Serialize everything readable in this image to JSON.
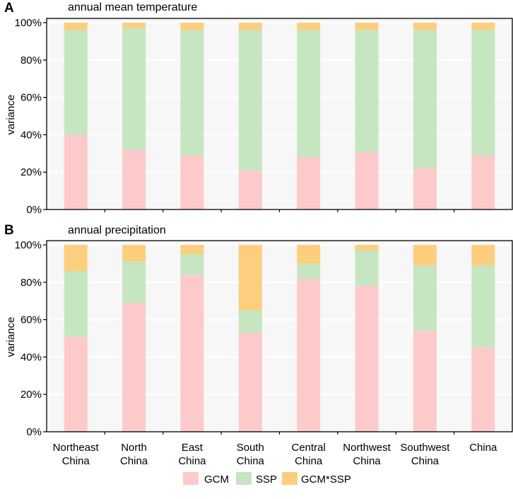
{
  "figure": {
    "panels": [
      {
        "letter": "A",
        "title": "annual mean temperature"
      },
      {
        "letter": "B",
        "title": "annual precipitation"
      }
    ],
    "colors": {
      "GCM": "#fdcacb",
      "SSP": "#c6e6c1",
      "GCM*SSP": "#fcce7e",
      "plot_bg": "#f7f7f7",
      "grid": "#ffffff"
    }
  },
  "chart_data": [
    {
      "type": "bar",
      "stacked": true,
      "title": "annual mean temperature",
      "panel": "A",
      "ylabel": "variance",
      "xlabel": "",
      "ylim": [
        0,
        100
      ],
      "yticks": [
        "0%",
        "20%",
        "40%",
        "60%",
        "80%",
        "100%"
      ],
      "categories": [
        "Northeast China",
        "North China",
        "East China",
        "South China",
        "Central China",
        "Northwest China",
        "Southwest China",
        "China"
      ],
      "series": [
        {
          "name": "GCM",
          "values": [
            40,
            32,
            29,
            21,
            28,
            31,
            22,
            29
          ]
        },
        {
          "name": "SSP",
          "values": [
            56,
            65,
            67,
            75,
            68,
            65,
            74,
            67
          ]
        },
        {
          "name": "GCM*SSP",
          "values": [
            4,
            3,
            4,
            4,
            4,
            4,
            4,
            4
          ]
        }
      ]
    },
    {
      "type": "bar",
      "stacked": true,
      "title": "annual precipitation",
      "panel": "B",
      "ylabel": "variance",
      "xlabel": "",
      "ylim": [
        0,
        100
      ],
      "yticks": [
        "0%",
        "20%",
        "40%",
        "60%",
        "80%",
        "100%"
      ],
      "categories": [
        "Northeast China",
        "North China",
        "East China",
        "South China",
        "Central China",
        "Northwest China",
        "Southwest China",
        "China"
      ],
      "series": [
        {
          "name": "GCM",
          "values": [
            51,
            69,
            84,
            53,
            82,
            78,
            54,
            45
          ]
        },
        {
          "name": "SSP",
          "values": [
            35,
            22,
            11,
            12,
            8,
            19,
            35,
            44
          ]
        },
        {
          "name": "GCM*SSP",
          "values": [
            14,
            9,
            5,
            35,
            10,
            3,
            11,
            11
          ]
        }
      ]
    }
  ],
  "x_axis": {
    "labels": [
      [
        "Northeast",
        "China"
      ],
      [
        "North",
        "China"
      ],
      [
        "East",
        "China"
      ],
      [
        "South",
        "China"
      ],
      [
        "Central",
        "China"
      ],
      [
        "Northwest",
        "China"
      ],
      [
        "Southwest",
        "China"
      ],
      [
        "China"
      ]
    ]
  },
  "legend": {
    "items": [
      {
        "label": "GCM",
        "color": "#fdcacb"
      },
      {
        "label": "SSP",
        "color": "#c6e6c1"
      },
      {
        "label": "GCM*SSP",
        "color": "#fcce7e"
      }
    ]
  }
}
